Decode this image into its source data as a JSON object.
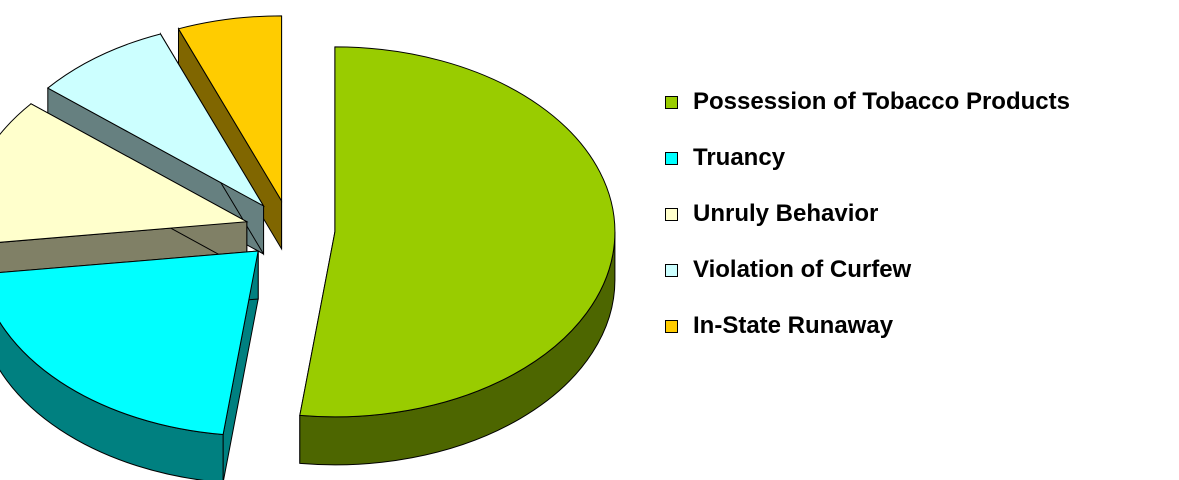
{
  "chart_data": {
    "type": "pie",
    "style": "3d-exploded",
    "title": "",
    "slices": [
      {
        "label": "Possession of Tobacco Products",
        "value": 52,
        "color": "#99cc00",
        "side_color": "#4d6600"
      },
      {
        "label": "Truancy",
        "value": 21,
        "color": "#00ffff",
        "side_color": "#008080"
      },
      {
        "label": "Unruly Behavior",
        "value": 13,
        "color": "#ffffcc",
        "side_color": "#808066"
      },
      {
        "label": "Violation of Curfew",
        "value": 8,
        "color": "#ccffff",
        "side_color": "#668080"
      },
      {
        "label": "In-State Runaway",
        "value": 6,
        "color": "#ffcc00",
        "side_color": "#806600"
      }
    ],
    "legend_position": "right"
  }
}
